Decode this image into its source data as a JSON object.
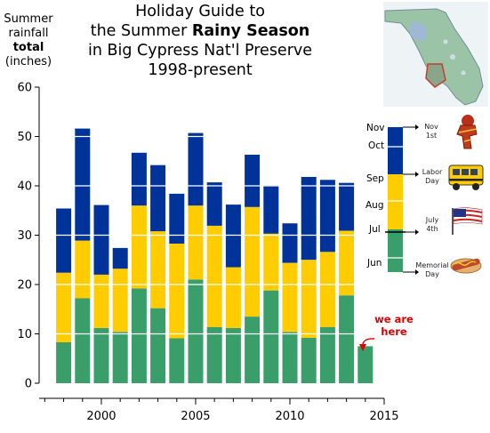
{
  "header": {
    "ylabel_lines": [
      "Summer",
      "rainfall",
      "total",
      "(inches)"
    ],
    "title_lines": [
      "Holiday Guide to",
      "the Summer ",
      "Rainy Season",
      "in Big Cypress Nat'l Preserve",
      "1998-present"
    ]
  },
  "annotation": {
    "we_are_here_lines": [
      "we are",
      "here"
    ]
  },
  "legend": {
    "months": [
      "Nov",
      "Oct",
      "Sep",
      "Aug",
      "Jul",
      "Jun"
    ],
    "holidays": [
      {
        "lines": [
          "Nov",
          "1st"
        ],
        "icon": "autumn-scarf-icon"
      },
      {
        "lines": [
          "Labor",
          "Day"
        ],
        "icon": "school-bus-icon"
      },
      {
        "lines": [
          "July",
          "4th"
        ],
        "icon": "american-flag-icon"
      },
      {
        "lines": [
          "Memorial",
          "Day"
        ],
        "icon": "hot-dog-icon"
      }
    ]
  },
  "map": {
    "icon": "florida-map-icon"
  },
  "colors": {
    "early": "#3a9e6a",
    "mid": "#ffcc00",
    "late": "#003399",
    "annotation": "#e00000"
  },
  "chart_data": {
    "type": "bar",
    "stacked": true,
    "x": [
      1998,
      1999,
      2000,
      2001,
      2002,
      2003,
      2004,
      2005,
      2006,
      2007,
      2008,
      2009,
      2010,
      2011,
      2012,
      2013,
      2014
    ],
    "series": [
      {
        "key": "early",
        "values": [
          8.3,
          17.2,
          11.2,
          10.4,
          19.2,
          15.2,
          9.1,
          21.0,
          11.4,
          11.2,
          13.5,
          18.8,
          10.4,
          9.2,
          11.4,
          17.8,
          7.5
        ]
      },
      {
        "key": "mid",
        "values": [
          14.1,
          11.7,
          10.8,
          12.8,
          16.8,
          15.6,
          19.2,
          15.0,
          20.5,
          12.3,
          22.2,
          11.5,
          14.0,
          15.8,
          15.2,
          13.1,
          0
        ]
      },
      {
        "key": "late",
        "values": [
          13.0,
          22.7,
          14.1,
          4.2,
          10.7,
          13.4,
          10.1,
          14.7,
          8.8,
          12.7,
          10.6,
          9.8,
          8.0,
          16.8,
          14.6,
          9.7,
          0
        ]
      }
    ],
    "ylim": [
      0,
      60
    ],
    "yticks": [
      0,
      10,
      20,
      30,
      40,
      50,
      60
    ],
    "xlim": [
      1996.7,
      2015
    ],
    "xticks_labeled": [
      2000,
      2005,
      2010,
      2015
    ],
    "grid": "horizontal-white"
  }
}
